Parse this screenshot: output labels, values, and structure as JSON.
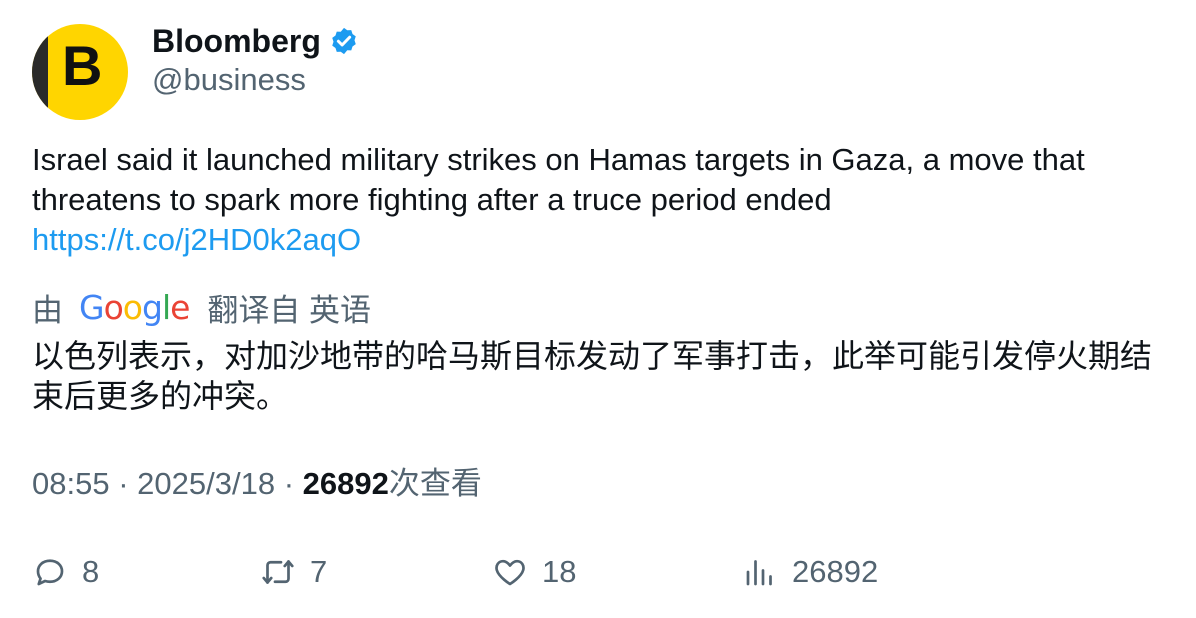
{
  "author": {
    "display_name": "Bloomberg",
    "handle": "@business",
    "avatar_letter": "B",
    "verified": true
  },
  "tweet": {
    "text": "Israel said it launched military strikes on Hamas targets in Gaza, a move that threatens to spark more fighting after a truce period ended",
    "link": "https://t.co/j2HD0k2aqO"
  },
  "translation": {
    "prefix": "由",
    "provider": "Google",
    "suffix": "翻译自 英语",
    "text": "以色列表示，对加沙地带的哈马斯目标发动了军事打击，此举可能引发停火期结束后更多的冲突。"
  },
  "meta": {
    "time": "08:55",
    "separator": "·",
    "date": "2025/3/18",
    "views_count": "26892",
    "views_label": "次查看"
  },
  "actions": {
    "replies": "8",
    "retweets": "7",
    "likes": "18",
    "views": "26892"
  },
  "colors": {
    "accent": "#1d9bf0",
    "secondary_text": "#536471",
    "primary_text": "#0f1419",
    "avatar_bg": "#ffd500"
  }
}
